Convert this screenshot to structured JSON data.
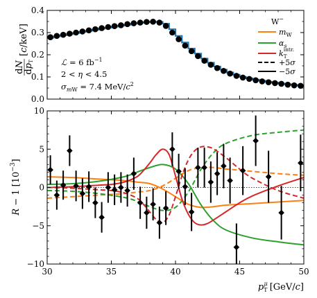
{
  "chart_data": [
    {
      "type": "line",
      "panel": "top",
      "ylabel": "dN/dp_T [c/keV]",
      "xlim": [
        30,
        50
      ],
      "ylim": [
        0.0,
        0.4
      ],
      "yticks": [
        0.0,
        0.1,
        0.2,
        0.3,
        0.4
      ],
      "ytick_labels": [
        "0.0",
        "0.1",
        "0.2",
        "0.3",
        "0.4"
      ],
      "annotations": [
        "ℒ = 6 fb⁻¹",
        "2 < η < 4.5",
        "σ_mW = 7.4 MeV/c²"
      ],
      "series": [
        {
          "name": "",
          "kind": "step",
          "color": "#1f77b4",
          "x": [
            30.0,
            30.5,
            31.0,
            31.5,
            32.0,
            32.5,
            33.0,
            33.5,
            34.0,
            34.5,
            35.0,
            35.5,
            36.0,
            36.5,
            37.0,
            37.5,
            38.0,
            38.5,
            39.0,
            39.5,
            40.0,
            40.5,
            41.0,
            41.5,
            42.0,
            42.5,
            43.0,
            43.5,
            44.0,
            44.5,
            45.0,
            45.5,
            46.0,
            46.5,
            47.0,
            47.5,
            48.0,
            48.5,
            49.0,
            49.5,
            50.0
          ],
          "y": [
            0.277,
            0.283,
            0.288,
            0.293,
            0.298,
            0.303,
            0.308,
            0.313,
            0.318,
            0.322,
            0.327,
            0.331,
            0.335,
            0.34,
            0.344,
            0.347,
            0.349,
            0.348,
            0.34,
            0.315,
            0.285,
            0.255,
            0.228,
            0.205,
            0.183,
            0.164,
            0.147,
            0.133,
            0.12,
            0.11,
            0.1,
            0.094,
            0.088,
            0.083,
            0.078,
            0.074,
            0.07,
            0.067,
            0.064,
            0.061,
            0.06
          ]
        },
        {
          "name": "",
          "kind": "points",
          "color": "#000000",
          "x": [
            30.25,
            30.75,
            31.25,
            31.75,
            32.25,
            32.75,
            33.25,
            33.75,
            34.25,
            34.75,
            35.25,
            35.75,
            36.25,
            36.75,
            37.25,
            37.75,
            38.25,
            38.75,
            39.25,
            39.75,
            40.25,
            40.75,
            41.25,
            41.75,
            42.25,
            42.75,
            43.25,
            43.75,
            44.25,
            44.75,
            45.25,
            45.75,
            46.25,
            46.75,
            47.25,
            47.75,
            48.25,
            48.75,
            49.25,
            49.75
          ],
          "y": [
            0.279,
            0.285,
            0.29,
            0.295,
            0.3,
            0.305,
            0.31,
            0.315,
            0.32,
            0.325,
            0.329,
            0.333,
            0.338,
            0.342,
            0.345,
            0.348,
            0.349,
            0.345,
            0.33,
            0.3,
            0.27,
            0.241,
            0.216,
            0.194,
            0.173,
            0.155,
            0.14,
            0.127,
            0.115,
            0.105,
            0.097,
            0.091,
            0.085,
            0.08,
            0.076,
            0.072,
            0.069,
            0.065,
            0.062,
            0.06
          ]
        }
      ]
    },
    {
      "type": "line",
      "panel": "bottom",
      "xlabel": "p_T^μ [GeV/c]",
      "ylabel": "R − 1 [10⁻³]",
      "xlim": [
        30,
        50
      ],
      "ylim": [
        -10,
        10
      ],
      "xticks": [
        30,
        35,
        40,
        45,
        50
      ],
      "xtick_labels": [
        "30",
        "35",
        "40",
        "45",
        "50"
      ],
      "yticks": [
        -10,
        -5,
        0,
        5,
        10
      ],
      "ytick_labels": [
        "−10",
        "−5",
        "0",
        "5",
        "10"
      ],
      "legend": {
        "title": "W⁻",
        "placement": "top-right",
        "entries": [
          {
            "label": "m_W",
            "color": "#ff7f0e",
            "style": "solid"
          },
          {
            "label": "α_s",
            "color": "#2ca02c",
            "style": "solid"
          },
          {
            "label": "k_T^intr.",
            "color": "#d62728",
            "style": "solid"
          },
          {
            "label": "+5σ",
            "color": "#000000",
            "style": "dashed"
          },
          {
            "label": "−5σ",
            "color": "#000000",
            "style": "solid"
          }
        ]
      },
      "series": [
        {
          "name": "m_W +5σ",
          "color": "#ff7f0e",
          "style": "dashed",
          "x": [
            30,
            32,
            34,
            36,
            37,
            38,
            39,
            40,
            41,
            42,
            43,
            44,
            46,
            48,
            50
          ],
          "y": [
            -1.4,
            -1.2,
            -1.0,
            -0.8,
            -0.6,
            -0.4,
            0.2,
            1.2,
            2.2,
            2.6,
            2.6,
            2.4,
            2.1,
            1.8,
            1.6
          ]
        },
        {
          "name": "m_W −5σ",
          "color": "#ff7f0e",
          "style": "solid",
          "x": [
            30,
            32,
            34,
            36,
            37,
            38,
            39,
            40,
            41,
            42,
            43,
            44,
            46,
            48,
            50
          ],
          "y": [
            1.4,
            1.3,
            1.1,
            0.9,
            0.7,
            0.5,
            -0.2,
            -1.2,
            -2.2,
            -2.6,
            -2.5,
            -2.3,
            -2.1,
            -1.9,
            -1.7
          ]
        },
        {
          "name": "α_s +5σ",
          "color": "#2ca02c",
          "style": "dashed",
          "x": [
            30,
            32,
            34,
            36,
            37,
            38,
            39,
            40,
            41,
            42,
            43,
            44,
            46,
            48,
            50
          ],
          "y": [
            -0.4,
            -0.5,
            -0.8,
            -1.3,
            -1.8,
            -2.5,
            -3.0,
            -2.6,
            -0.6,
            2.4,
            4.6,
            5.8,
            6.8,
            7.2,
            7.5
          ]
        },
        {
          "name": "α_s −5σ",
          "color": "#2ca02c",
          "style": "solid",
          "x": [
            30,
            32,
            34,
            36,
            37,
            38,
            39,
            40,
            41,
            42,
            43,
            44,
            46,
            48,
            50
          ],
          "y": [
            0.4,
            0.5,
            0.8,
            1.4,
            2.0,
            2.6,
            3.0,
            2.4,
            0.5,
            -2.3,
            -4.4,
            -5.6,
            -6.6,
            -7.1,
            -7.5
          ]
        },
        {
          "name": "k_T^intr. +5σ",
          "color": "#d62728",
          "style": "dashed",
          "x": [
            30,
            32,
            34,
            35,
            36,
            37,
            37.5,
            38,
            38.5,
            39,
            39.5,
            40,
            40.5,
            41,
            41.5,
            42,
            42.5,
            43,
            44,
            45,
            46,
            48,
            50
          ],
          "y": [
            0.0,
            -0.1,
            -0.3,
            -0.4,
            -0.7,
            -1.4,
            -2.2,
            -3.2,
            -4.2,
            -4.6,
            -3.6,
            -1.2,
            1.5,
            3.6,
            4.8,
            5.3,
            5.3,
            5.0,
            3.8,
            2.4,
            1.2,
            -0.4,
            -1.4
          ]
        },
        {
          "name": "k_T^intr. −5σ",
          "color": "#d62728",
          "style": "solid",
          "x": [
            30,
            32,
            34,
            35,
            36,
            37,
            37.5,
            38,
            38.5,
            39,
            39.5,
            40,
            40.5,
            41,
            41.5,
            42,
            42.5,
            43,
            44,
            45,
            46,
            48,
            50
          ],
          "y": [
            0.0,
            0.1,
            0.3,
            0.4,
            0.7,
            1.4,
            2.2,
            3.2,
            4.3,
            5.0,
            4.3,
            1.5,
            -1.5,
            -3.5,
            -4.6,
            -4.9,
            -4.7,
            -4.2,
            -3.1,
            -2.0,
            -1.1,
            0.2,
            1.3
          ]
        },
        {
          "name": "Data",
          "kind": "errorbar",
          "color": "#000000",
          "x": [
            30.25,
            30.75,
            31.25,
            31.75,
            32.25,
            32.75,
            33.25,
            33.75,
            34.25,
            34.75,
            35.25,
            35.75,
            36.25,
            36.75,
            37.25,
            37.75,
            38.25,
            38.75,
            39.25,
            39.75,
            40.25,
            40.75,
            41.25,
            41.75,
            42.25,
            42.75,
            43.25,
            43.75,
            44.25,
            44.75,
            45.25,
            46.25,
            47.25,
            48.25,
            49.75
          ],
          "y": [
            2.3,
            -1.0,
            0.3,
            4.8,
            0.2,
            -0.8,
            0.1,
            -2.0,
            -3.9,
            0.0,
            -0.3,
            0.0,
            -0.4,
            1.8,
            -2.0,
            -3.3,
            -2.2,
            -4.6,
            -2.7,
            5.0,
            2.1,
            0.1,
            -3.2,
            2.6,
            2.6,
            0.7,
            1.8,
            2.8,
            0.9,
            -7.8,
            2.2,
            6.1,
            1.4,
            -3.3,
            3.2
          ],
          "err": [
            1.9,
            1.9,
            1.9,
            2.0,
            2.0,
            2.0,
            2.0,
            2.0,
            2.0,
            2.0,
            2.0,
            2.0,
            2.1,
            2.1,
            2.1,
            2.1,
            2.1,
            2.1,
            2.2,
            2.2,
            2.3,
            2.4,
            2.5,
            2.6,
            2.6,
            2.7,
            2.8,
            2.9,
            3.0,
            3.1,
            3.2,
            3.3,
            3.4,
            3.5,
            3.7
          ]
        }
      ]
    }
  ]
}
